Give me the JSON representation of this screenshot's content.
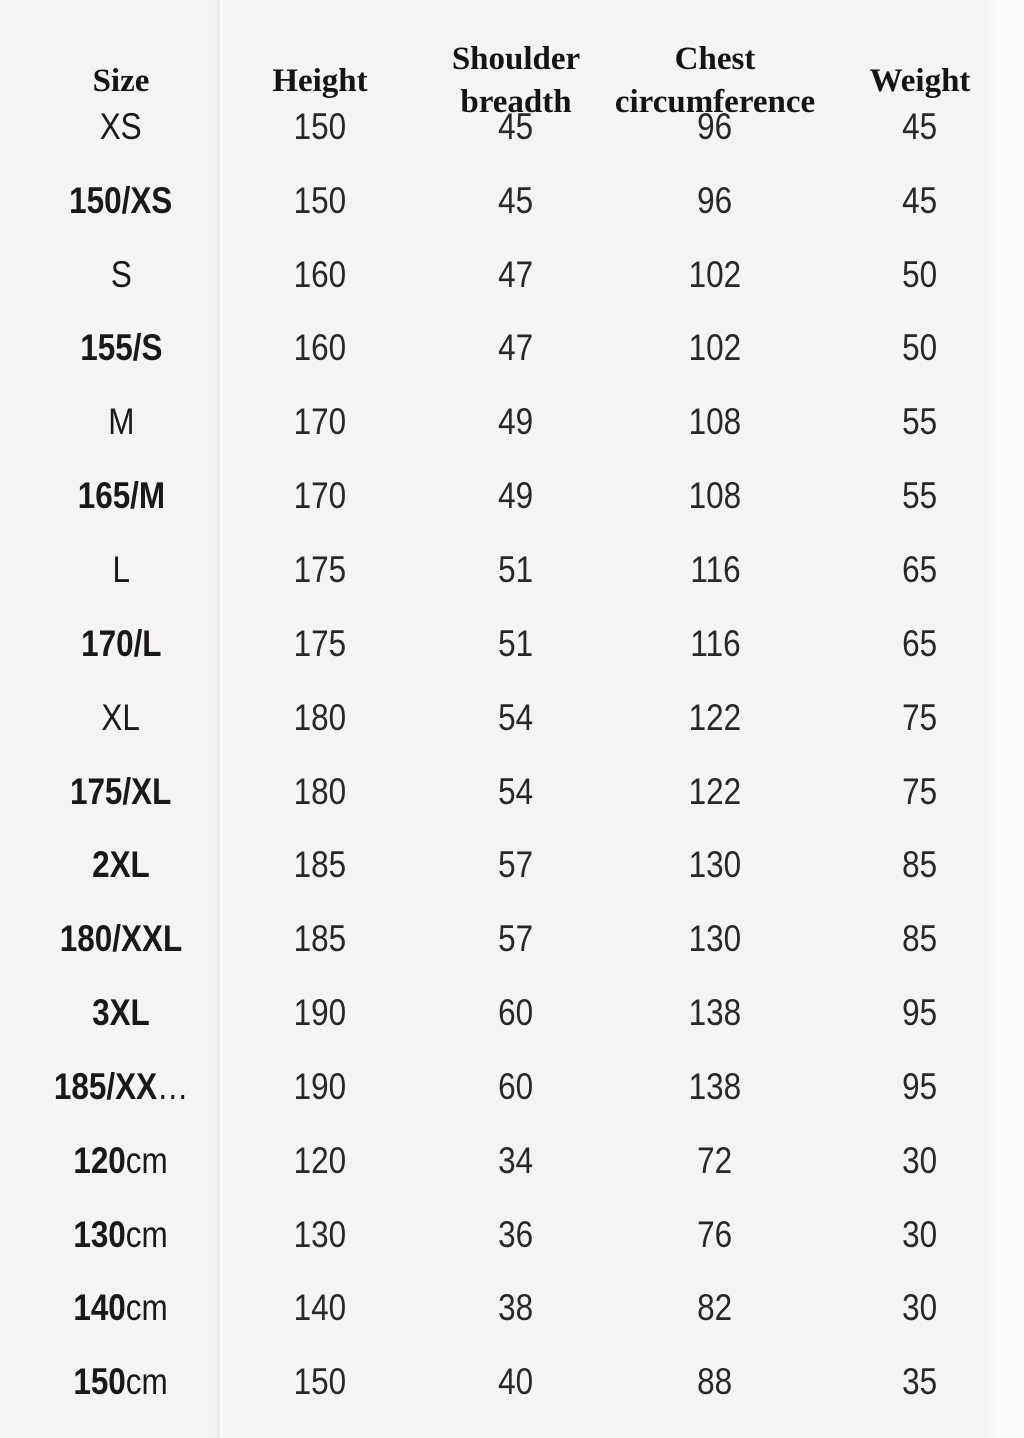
{
  "table": {
    "columns": [
      {
        "key": "size",
        "label": "Size"
      },
      {
        "key": "height",
        "label": "Height"
      },
      {
        "key": "shoulder",
        "label": "Shoulder\nbreadth"
      },
      {
        "key": "chest",
        "label": "Chest\ncircumference"
      },
      {
        "key": "weight",
        "label": "Weight"
      }
    ],
    "rows": [
      {
        "size_strong": "",
        "size_normal": "XS",
        "height": "150",
        "shoulder": "45",
        "chest": "96",
        "weight": "45"
      },
      {
        "size_strong": "150/XS",
        "size_normal": "",
        "height": "150",
        "shoulder": "45",
        "chest": "96",
        "weight": "45"
      },
      {
        "size_strong": "",
        "size_normal": "S",
        "height": "160",
        "shoulder": "47",
        "chest": "102",
        "weight": "50"
      },
      {
        "size_strong": "155/S",
        "size_normal": "",
        "height": "160",
        "shoulder": "47",
        "chest": "102",
        "weight": "50"
      },
      {
        "size_strong": "",
        "size_normal": "M",
        "height": "170",
        "shoulder": "49",
        "chest": "108",
        "weight": "55"
      },
      {
        "size_strong": "165/M",
        "size_normal": "",
        "height": "170",
        "shoulder": "49",
        "chest": "108",
        "weight": "55"
      },
      {
        "size_strong": "",
        "size_normal": "L",
        "height": "175",
        "shoulder": "51",
        "chest": "116",
        "weight": "65"
      },
      {
        "size_strong": "170/L",
        "size_normal": "",
        "height": "175",
        "shoulder": "51",
        "chest": "116",
        "weight": "65"
      },
      {
        "size_strong": "",
        "size_normal": "XL",
        "height": "180",
        "shoulder": "54",
        "chest": "122",
        "weight": "75"
      },
      {
        "size_strong": "175/XL",
        "size_normal": "",
        "height": "180",
        "shoulder": "54",
        "chest": "122",
        "weight": "75"
      },
      {
        "size_strong": "2XL",
        "size_normal": "",
        "height": "185",
        "shoulder": "57",
        "chest": "130",
        "weight": "85"
      },
      {
        "size_strong": "180/XXL",
        "size_normal": "",
        "height": "185",
        "shoulder": "57",
        "chest": "130",
        "weight": "85"
      },
      {
        "size_strong": "3XL",
        "size_normal": "",
        "height": "190",
        "shoulder": "60",
        "chest": "138",
        "weight": "95"
      },
      {
        "size_strong": "185/XX",
        "size_normal": "…",
        "height": "190",
        "shoulder": "60",
        "chest": "138",
        "weight": "95"
      },
      {
        "size_strong": "120",
        "size_normal": "cm",
        "height": "120",
        "shoulder": "34",
        "chest": "72",
        "weight": "30"
      },
      {
        "size_strong": "130",
        "size_normal": "cm",
        "height": "130",
        "shoulder": "36",
        "chest": "76",
        "weight": "30"
      },
      {
        "size_strong": "140",
        "size_normal": "cm",
        "height": "140",
        "shoulder": "38",
        "chest": "82",
        "weight": "30"
      },
      {
        "size_strong": "150",
        "size_normal": "cm",
        "height": "150",
        "shoulder": "40",
        "chest": "88",
        "weight": "35"
      }
    ]
  },
  "colors": {
    "background": "#f5f4f2",
    "text": "#2a2826",
    "header_text": "#161413",
    "divider": "#fbfbfa"
  }
}
